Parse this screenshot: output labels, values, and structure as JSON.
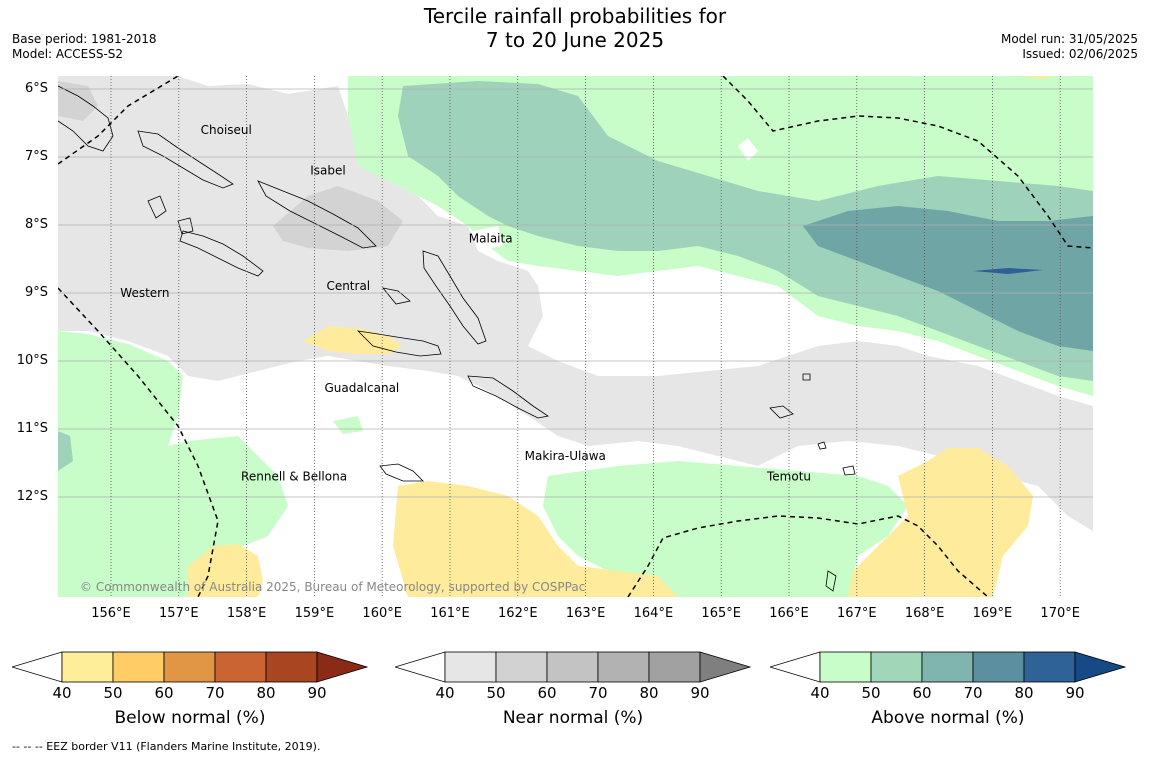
{
  "title": {
    "line1": "Tercile rainfall probabilities for",
    "line2": "7 to 20 June 2025"
  },
  "meta": {
    "base_period": "Base period: 1981-2018",
    "model": "Model: ACCESS-S2",
    "model_run": "Model run: 31/05/2025",
    "issued": "Issued: 02/06/2025"
  },
  "map": {
    "lat_range": [
      -13.5,
      -5.8
    ],
    "lon_range": [
      155.2,
      170.5
    ],
    "lat_ticks": [
      "6°S",
      "7°S",
      "8°S",
      "9°S",
      "10°S",
      "11°S",
      "12°S"
    ],
    "lon_ticks": [
      "156°E",
      "157°E",
      "158°E",
      "159°E",
      "160°E",
      "161°E",
      "162°E",
      "163°E",
      "164°E",
      "165°E",
      "166°E",
      "167°E",
      "168°E",
      "169°E",
      "170°E"
    ],
    "places": [
      {
        "name": "Choiseul",
        "lon": 157.7,
        "lat": -6.6
      },
      {
        "name": "Isabel",
        "lon": 159.2,
        "lat": -7.2
      },
      {
        "name": "Malaita",
        "lon": 161.6,
        "lat": -8.2
      },
      {
        "name": "Western",
        "lon": 156.5,
        "lat": -9.0
      },
      {
        "name": "Central",
        "lon": 159.5,
        "lat": -8.9
      },
      {
        "name": "Guadalcanal",
        "lon": 159.7,
        "lat": -10.4
      },
      {
        "name": "Makira-Ulawa",
        "lon": 162.7,
        "lat": -11.4
      },
      {
        "name": "Rennell & Bellona",
        "lon": 158.7,
        "lat": -11.7
      },
      {
        "name": "Temotu",
        "lon": 166.0,
        "lat": -11.7
      }
    ],
    "copyright": "© Commonwealth of Australia 2025, Bureau of Meteorology, supported by COSPPac",
    "colors": {
      "ocean": "#ffffff",
      "near_40": "#e6e6e6",
      "near_50": "#d3d3d3",
      "above_40": "#c8fcc8",
      "above_50": "#9ed2bb",
      "above_60": "#70a5a5",
      "above_80": "#2e5f96",
      "below_40": "#feeb9b"
    }
  },
  "colorbars": [
    {
      "title": "Below normal (%)",
      "ticks": [
        "40",
        "50",
        "60",
        "70",
        "80",
        "90"
      ],
      "colors": [
        "#ffffff",
        "#ffee99",
        "#ffcc66",
        "#e19645",
        "#cb6433",
        "#aa4522",
        "#8b2a16"
      ]
    },
    {
      "title": "Near normal (%)",
      "ticks": [
        "40",
        "50",
        "60",
        "70",
        "80",
        "90"
      ],
      "colors": [
        "#ffffff",
        "#e6e6e6",
        "#d2d2d2",
        "#c3c3c3",
        "#b2b2b2",
        "#a1a1a1",
        "#7f7f7f"
      ]
    },
    {
      "title": "Above normal (%)",
      "ticks": [
        "40",
        "50",
        "60",
        "70",
        "80",
        "90"
      ],
      "colors": [
        "#ffffff",
        "#c8fcc8",
        "#a1d6b9",
        "#7fb5ae",
        "#5c90a1",
        "#2f6398",
        "#164a86"
      ]
    }
  ],
  "footnote": "--  --  -- EEZ border V11 (Flanders Marine Institute, 2019)."
}
